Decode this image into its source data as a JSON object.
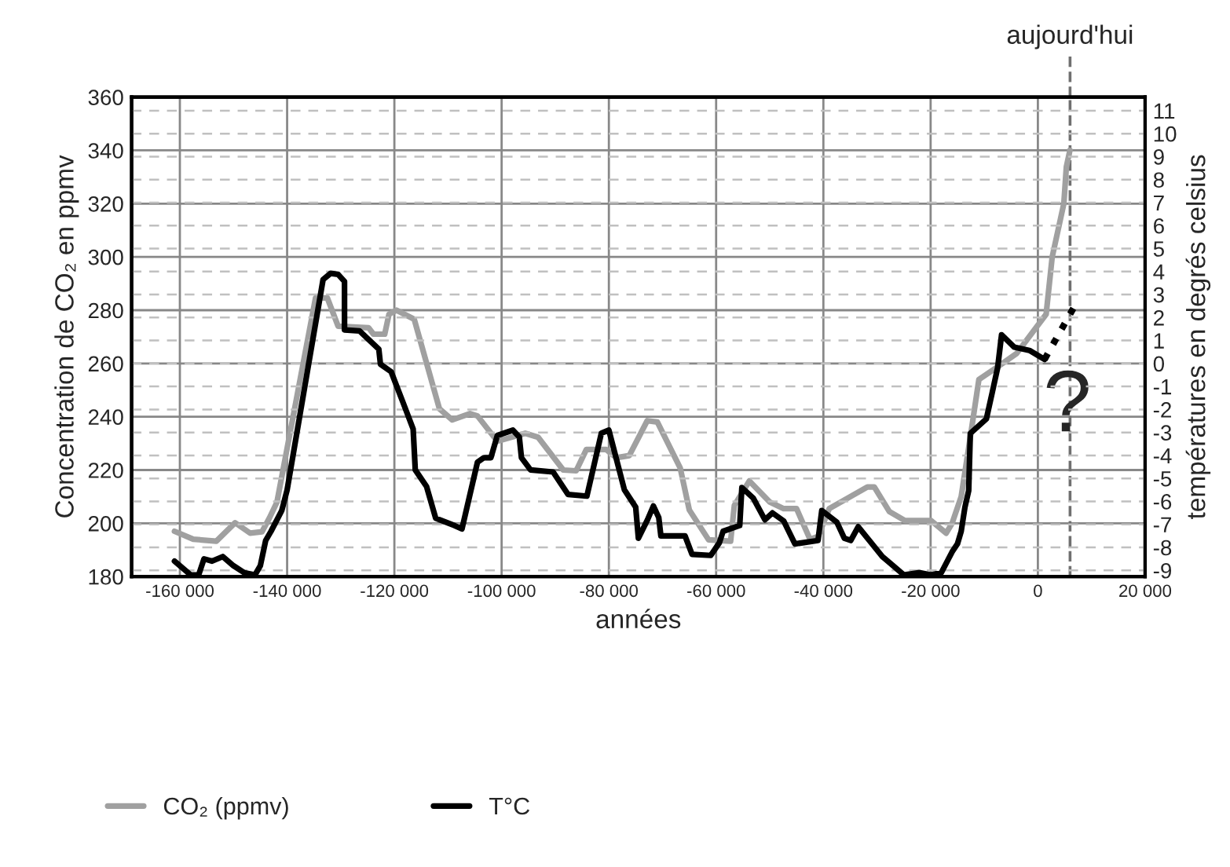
{
  "chart_data": {
    "type": "line",
    "xlabel": "années",
    "ylabel": "Concentration de CO₂ en ppmv",
    "y2label": "températures en degrés celsius",
    "xlim": [
      -169000,
      20000
    ],
    "ylim": [
      180,
      360
    ],
    "y2lim": [
      -9.27,
      11.59
    ],
    "xticks": [
      {
        "value": -160000,
        "label": "-160 000"
      },
      {
        "value": -140000,
        "label": "-140 000"
      },
      {
        "value": -120000,
        "label": "-120 000"
      },
      {
        "value": -100000,
        "label": "-100 000"
      },
      {
        "value": -80000,
        "label": "-80 000"
      },
      {
        "value": -60000,
        "label": "-60 000"
      },
      {
        "value": -40000,
        "label": "-40 000"
      },
      {
        "value": -20000,
        "label": "-20 000"
      },
      0,
      {
        "value": 20000,
        "label": "20 000"
      }
    ],
    "yticks": [
      180,
      200,
      220,
      240,
      260,
      280,
      300,
      320,
      340,
      360
    ],
    "y2ticks": [
      -9,
      -8,
      -7,
      -6,
      -5,
      -4,
      -3,
      -2,
      -1,
      0,
      1,
      2,
      3,
      4,
      5,
      6,
      7,
      8,
      9,
      10,
      11
    ],
    "grid": true,
    "legend": "bottom left",
    "marker": "none",
    "series": [
      {
        "name": "CO₂ (ppmv)",
        "color": "#a0a0a0",
        "line_style": "solid",
        "x": [
          -161000,
          -157500,
          -153200,
          -149700,
          -146900,
          -144700,
          -143300,
          -141900,
          -134700,
          -132500,
          -130500,
          -124800,
          -123900,
          -121800,
          -121000,
          -119600,
          -116300,
          -111600,
          -109200,
          -105900,
          -104500,
          -100800,
          -95600,
          -93200,
          -88500,
          -86100,
          -84200,
          -80500,
          -78600,
          -76200,
          -72850,
          -70960,
          -66700,
          -65000,
          -61400,
          -57300,
          -56600,
          -53800,
          -50000,
          -47400,
          -45000,
          -42500,
          -41000,
          -38900,
          -31800,
          -30500,
          -27700,
          -24800,
          -19900,
          -17100,
          -16000,
          -14300,
          -12400,
          -11000,
          -7700,
          -3940,
          1250,
          1540,
          2670,
          4840,
          5310,
          5970
        ],
        "values": [
          197,
          194,
          193.3,
          200.2,
          196.3,
          196.8,
          202,
          207.9,
          284.6,
          284.6,
          274,
          273.4,
          271,
          271,
          278.5,
          280,
          276.6,
          243,
          238.8,
          241.2,
          240.3,
          230.8,
          233.8,
          232.3,
          220,
          219.7,
          227.7,
          227.7,
          224.6,
          225.4,
          238.5,
          238,
          220.8,
          205,
          193.8,
          193.3,
          206.7,
          215.9,
          208,
          205.5,
          205.5,
          194,
          195,
          205.5,
          213.6,
          213.6,
          204.4,
          201,
          201,
          196.3,
          200,
          210,
          235,
          254,
          258.5,
          263.8,
          277.7,
          278.5,
          300,
          320,
          333.8,
          340
        ]
      },
      {
        "name": "T°C",
        "color": "#000000",
        "axis": "y2",
        "line_style": "solid",
        "x": [
          -161000,
          -159500,
          -158000,
          -156500,
          -155500,
          -154000,
          -152000,
          -150000,
          -148000,
          -146000,
          -145000,
          -144000,
          -143000,
          -141000,
          -140000,
          -133300,
          -131900,
          -130500,
          -129300,
          -129300,
          -126500,
          -122900,
          -122600,
          -120600,
          -118400,
          -116500,
          -116100,
          -114000,
          -112300,
          -108800,
          -107400,
          -104500,
          -103300,
          -102000,
          -100800,
          -97900,
          -96700,
          -96300,
          -94600,
          -90400,
          -87600,
          -84100,
          -81400,
          -80000,
          -77100,
          -75000,
          -74500,
          -72800,
          -71700,
          -70700,
          -70300,
          -65800,
          -64500,
          -61000,
          -59400,
          -58700,
          -55600,
          -55200,
          -53100,
          -50900,
          -49500,
          -47400,
          -45300,
          -41000,
          -40300,
          -37500,
          -36100,
          -34900,
          -33500,
          -29000,
          -28000,
          -25000,
          -22000,
          -20000,
          -18000,
          -16000,
          -15000,
          -14300,
          -13600,
          -12900,
          -12600,
          -9600,
          -8500,
          -7500,
          -6770,
          -4400,
          -1580,
          1250
        ],
        "values": [
          -8.6,
          -8.9,
          -9.2,
          -9.2,
          -8.5,
          -8.6,
          -8.4,
          -8.8,
          -9.1,
          -9.2,
          -8.8,
          -7.7,
          -7.3,
          -6.4,
          -5.5,
          3.65,
          3.92,
          3.88,
          3.57,
          1.46,
          1.42,
          0.62,
          -0.03,
          -0.36,
          -1.69,
          -2.85,
          -4.63,
          -5.35,
          -6.73,
          -7.05,
          -7.2,
          -4.29,
          -4.1,
          -4.1,
          -3.13,
          -2.9,
          -3.2,
          -4.1,
          -4.63,
          -4.72,
          -5.7,
          -5.77,
          -3.03,
          -2.9,
          -5.5,
          -6.25,
          -7.6,
          -6.8,
          -6.2,
          -6.7,
          -7.5,
          -7.5,
          -8.3,
          -8.35,
          -7.8,
          -7.3,
          -7.05,
          -5.4,
          -5.85,
          -6.8,
          -6.5,
          -6.85,
          -7.85,
          -7.7,
          -6.4,
          -6.9,
          -7.6,
          -7.7,
          -7.1,
          -8.4,
          -8.6,
          -9.2,
          -9.1,
          -9.2,
          -9.1,
          -8.2,
          -7.85,
          -7.3,
          -6.25,
          -5.53,
          -3.04,
          -2.41,
          -1.25,
          -0.18,
          1.25,
          0.71,
          0.57,
          0.18
        ]
      },
      {
        "color": "#000000",
        "axis": "y2",
        "line_style": "dotted",
        "x": [
          1250,
          6630
        ],
        "values": [
          0.18,
          2.41
        ]
      }
    ],
    "ref_lines": [
      {
        "axis": "x",
        "value": 6000,
        "label": "aujourd'hui",
        "color": "#707070",
        "line_style": "dashed"
      }
    ],
    "annotations": [
      {
        "text": "?",
        "x": 5500,
        "y": 243
      }
    ]
  }
}
